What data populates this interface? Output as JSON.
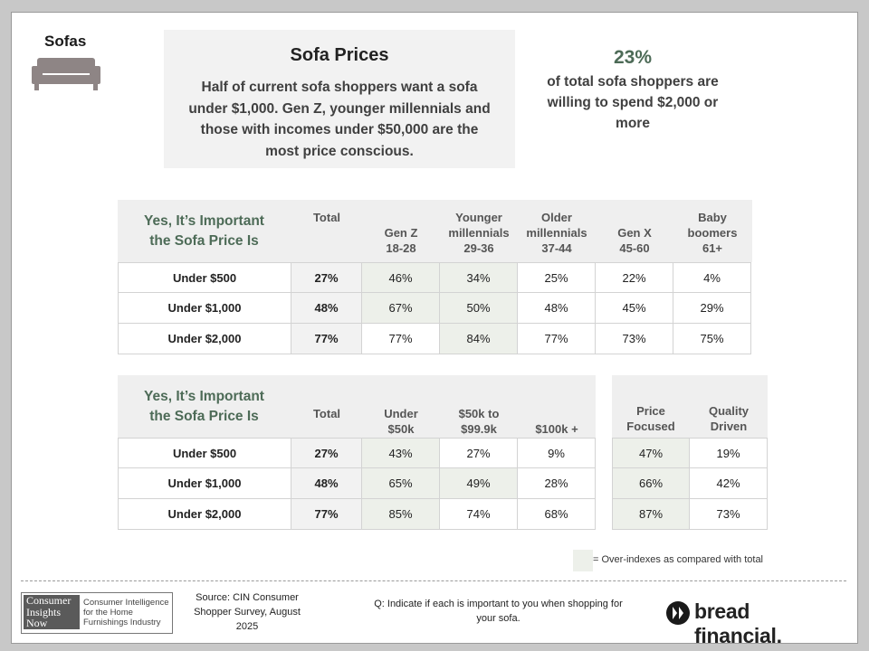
{
  "section_title": "Sofas",
  "sofa_icon": "sofa-icon",
  "prices_box": {
    "title": "Sofa Prices",
    "text": "Half of current sofa shoppers want a sofa under $1,000. Gen Z, younger millennials and those with incomes under $50,000 are the most price conscious."
  },
  "stat": {
    "value": "23%",
    "text": "of total sofa shoppers are willing to spend $2,000 or more"
  },
  "colors": {
    "accent": "#4d6b57",
    "highlight": "#edf0ea",
    "header_bg": "#efefef"
  },
  "table_age": {
    "title_line1": "Yes, It’s Important",
    "title_line2": "the Sofa Price Is",
    "columns": [
      {
        "line1": "Total",
        "line2": "",
        "line3": ""
      },
      {
        "line1": "",
        "line2": "Gen Z",
        "line3": "18-28"
      },
      {
        "line1": "Younger",
        "line2": "millennials",
        "line3": "29-36"
      },
      {
        "line1": "Older",
        "line2": "millennials",
        "line3": "37-44"
      },
      {
        "line1": "",
        "line2": "Gen X",
        "line3": "45-60"
      },
      {
        "line1": "Baby",
        "line2": "boomers",
        "line3": "61+"
      }
    ],
    "rows": [
      {
        "label": "Under $500",
        "total": "27%",
        "values": [
          "46%",
          "34%",
          "25%",
          "22%",
          "4%"
        ],
        "highlight": [
          true,
          true,
          false,
          false,
          false
        ]
      },
      {
        "label": "Under $1,000",
        "total": "48%",
        "values": [
          "67%",
          "50%",
          "48%",
          "45%",
          "29%"
        ],
        "highlight": [
          true,
          true,
          false,
          false,
          false
        ]
      },
      {
        "label": "Under $2,000",
        "total": "77%",
        "values": [
          "77%",
          "84%",
          "77%",
          "73%",
          "75%"
        ],
        "highlight": [
          false,
          true,
          false,
          false,
          false
        ]
      }
    ]
  },
  "table_income": {
    "title_line1": "Yes, It’s Important",
    "title_line2": "the Sofa Price Is",
    "columns": [
      {
        "line1": "Total",
        "line2": ""
      },
      {
        "line1": "Under",
        "line2": "$50k"
      },
      {
        "line1": "$50k to",
        "line2": "$99.9k"
      },
      {
        "line1": "",
        "line2": "$100k +"
      }
    ],
    "rows": [
      {
        "label": "Under $500",
        "total": "27%",
        "values": [
          "43%",
          "27%",
          "9%"
        ],
        "highlight": [
          true,
          false,
          false
        ]
      },
      {
        "label": "Under $1,000",
        "total": "48%",
        "values": [
          "65%",
          "49%",
          "28%"
        ],
        "highlight": [
          true,
          true,
          false
        ]
      },
      {
        "label": "Under $2,000",
        "total": "77%",
        "values": [
          "85%",
          "74%",
          "68%"
        ],
        "highlight": [
          true,
          false,
          false
        ]
      }
    ]
  },
  "table_focus": {
    "columns": [
      {
        "line1": "Price",
        "line2": "Focused"
      },
      {
        "line1": "Quality",
        "line2": "Driven"
      }
    ],
    "rows": [
      {
        "values": [
          "47%",
          "19%"
        ],
        "highlight": [
          true,
          false
        ]
      },
      {
        "values": [
          "66%",
          "42%"
        ],
        "highlight": [
          true,
          false
        ]
      },
      {
        "values": [
          "87%",
          "73%"
        ],
        "highlight": [
          true,
          false
        ]
      }
    ]
  },
  "legend": {
    "text": "= Over-indexes as compared with total"
  },
  "footer": {
    "cin_logo_line1": "Consumer",
    "cin_logo_line2": "Insights",
    "cin_logo_line3": "Now",
    "cin_tagline": "Consumer Intelligence for the Home Furnishings Industry",
    "source": "Source: CIN Consumer Shopper Survey, August 2025",
    "question": "Q: Indicate if each is important to you when shopping for your sofa.",
    "brand": "bread financial."
  }
}
